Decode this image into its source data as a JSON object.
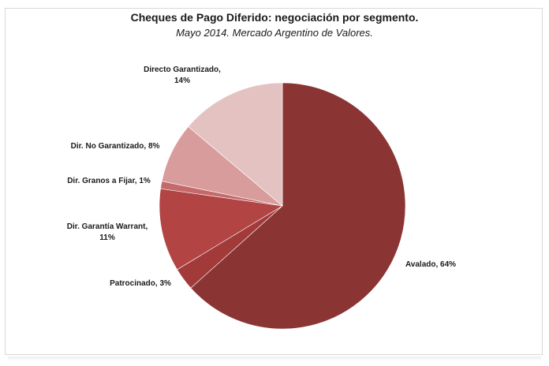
{
  "chart_data": {
    "type": "pie",
    "title": "Cheques de Pago Diferido: negociación por segmento.",
    "subtitle": "Mayo 2014. Mercado Argentino de Valores.",
    "slices": [
      {
        "label": "Avalado, 64%",
        "value": 64,
        "color": "#8b3434"
      },
      {
        "label": "Patrocinado, 3%",
        "value": 3,
        "color": "#a23a3a"
      },
      {
        "label": "Dir. Garantía Warrant,",
        "label2": "11%",
        "value": 11,
        "color": "#b24444"
      },
      {
        "label": "Dir. Granos a Fijar, 1%",
        "value": 1,
        "color": "#c46a6a"
      },
      {
        "label": "Dir. No Garantizado,  8%",
        "value": 8,
        "color": "#d89c9c"
      },
      {
        "label": "Directo Garantizado,",
        "label2": "14%",
        "value": 14,
        "color": "#e5c2c2"
      }
    ]
  }
}
